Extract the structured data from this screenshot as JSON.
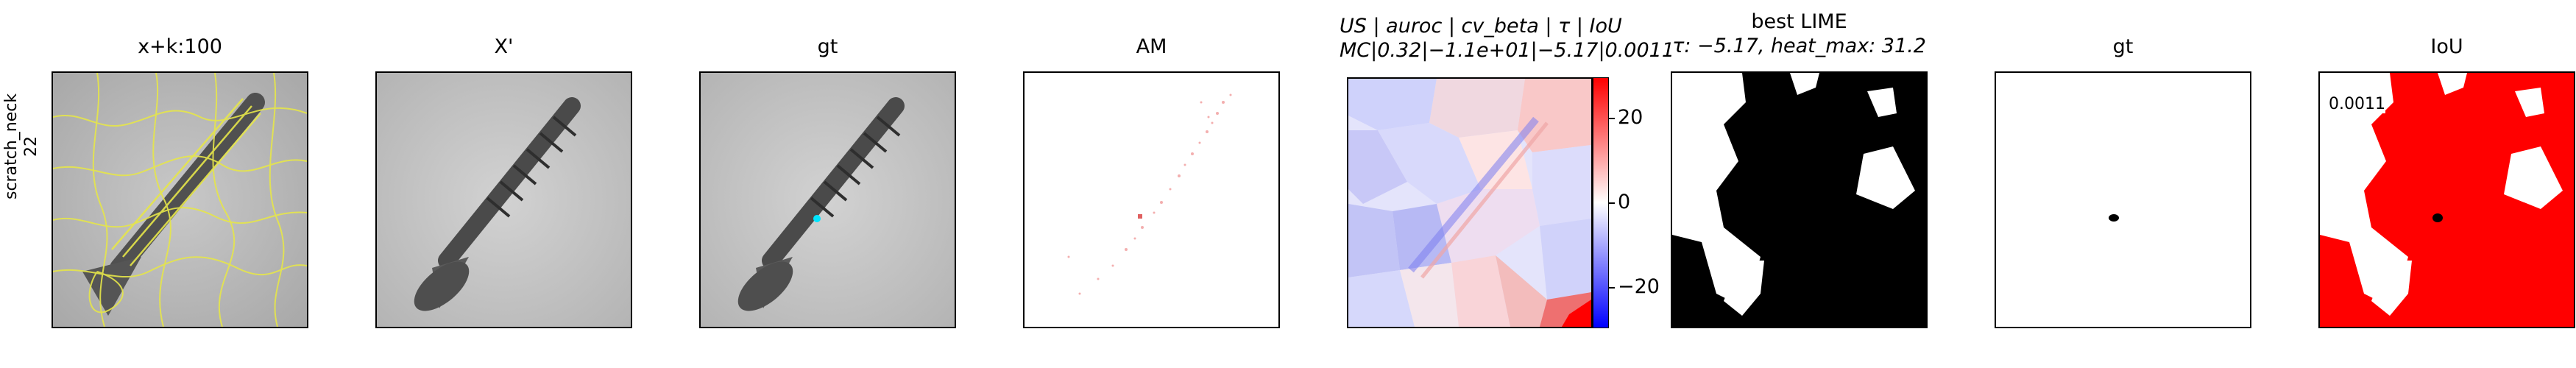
{
  "row_label": {
    "line1": "scratch_neck",
    "line2": "22"
  },
  "panels": {
    "superpixels_title": "x+k:100",
    "xprime_title": "X'",
    "gt1_title": "gt",
    "am_title": "AM",
    "heat_title_line1": "US | auroc | cv_beta | τ | IoU",
    "heat_title_line2": "MC|0.32|−1.1e+01|−5.17|0.0011",
    "lime_title_line1": "best LIME",
    "lime_title_line2": "τ: −5.17, heat_max: 31.2",
    "gt2_title": "gt",
    "iou_title": "IoU",
    "iou_value": "0.0011"
  },
  "colorbar": {
    "ticks": [
      "20",
      "0",
      "−20"
    ],
    "range": [
      -31.2,
      31.2
    ],
    "colors": [
      "#0000ff",
      "#ffffff",
      "#ff0000"
    ]
  },
  "colors": {
    "superpixel_edge": "#f2f24a",
    "iou_bg": "#ff0000",
    "gt_mark": "#00e5ff"
  }
}
